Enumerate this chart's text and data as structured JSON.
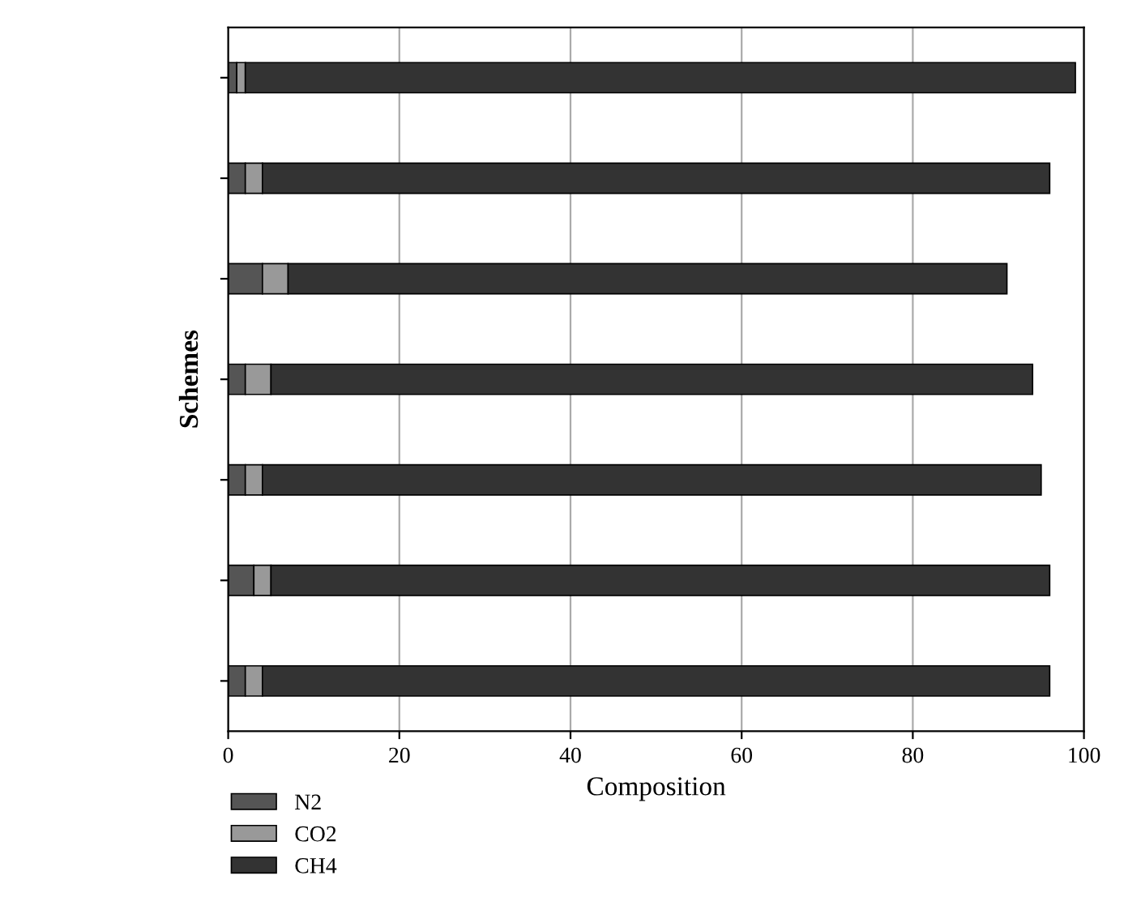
{
  "chart_data": {
    "type": "bar",
    "orientation": "horizontal",
    "stacked": true,
    "xlabel": "Composition",
    "ylabel": "Schemes",
    "categories": [
      null,
      null,
      null,
      null,
      null,
      null,
      null
    ],
    "series": [
      {
        "name": "N2",
        "color": "#555555",
        "values": [
          1,
          2,
          4,
          2,
          2,
          3,
          2
        ]
      },
      {
        "name": "CO2",
        "color": "#999999",
        "values": [
          1,
          2,
          3,
          3,
          2,
          2,
          2
        ]
      },
      {
        "name": "CH4",
        "color": "#333333",
        "values": [
          97,
          92,
          84,
          89,
          91,
          91,
          92
        ]
      }
    ],
    "xlim": [
      0,
      100
    ],
    "xticks": [
      0,
      20,
      40,
      60,
      80,
      100
    ],
    "grid": "x",
    "legend": "bottom left"
  }
}
